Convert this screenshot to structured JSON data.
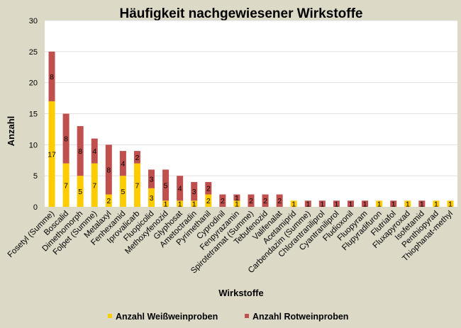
{
  "chart_data": {
    "type": "bar",
    "stacked": true,
    "title": "Häufigkeit nachgewiesener Wirkstoffe",
    "xlabel": "Wirkstoffe",
    "ylabel": "Anzahl",
    "ylim": [
      0,
      30
    ],
    "yticks": [
      0,
      5,
      10,
      15,
      20,
      25,
      30
    ],
    "grid": true,
    "legend_position": "bottom",
    "categories": [
      "Fosetyl (Summe)",
      "Boscalid",
      "Dimethomorph",
      "Folpet (Summe)",
      "Metalaxyl",
      "Fenhexamid",
      "Iprovalicarb",
      "Fluopicolid",
      "Methoxyfenozid",
      "Glyphosat",
      "Ametoctradin",
      "Pyrimethanil",
      "Cyprodinil",
      "Fenpyrazamin",
      "Spirotetramat (Summe)",
      "Tebufenozid",
      "Valifenalat",
      "Acetamiprid",
      "Carbendazim (Summe)",
      "Chlorantraniliprol",
      "Cyantraniliprol",
      "Fludioxonil",
      "Fluopyram",
      "Flupyradifuron",
      "Flutriafol",
      "Fluxapyroxad",
      "Isofetamid",
      "Penthiopyrad",
      "Thiophanat-methyl"
    ],
    "series": [
      {
        "name": "Anzahl Weißweinproben",
        "color": "#ffcc00",
        "values": [
          17,
          7,
          5,
          7,
          2,
          5,
          7,
          3,
          1,
          1,
          1,
          2,
          0,
          1,
          0,
          0,
          0,
          1,
          0,
          0,
          0,
          0,
          0,
          1,
          0,
          1,
          0,
          1,
          1
        ]
      },
      {
        "name": "Anzahl Rotweinproben",
        "color": "#c0504d",
        "values": [
          8,
          8,
          8,
          4,
          8,
          4,
          2,
          3,
          5,
          4,
          3,
          2,
          2,
          1,
          2,
          2,
          2,
          0,
          1,
          1,
          1,
          1,
          1,
          0,
          1,
          0,
          1,
          0,
          0
        ]
      }
    ]
  }
}
